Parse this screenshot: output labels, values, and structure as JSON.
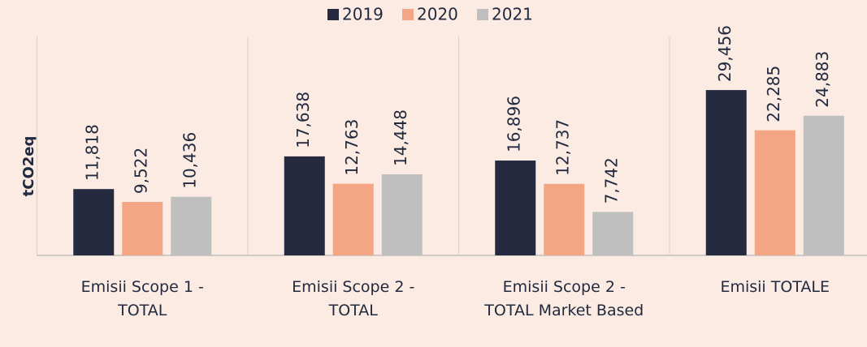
{
  "chart_data": {
    "type": "bar",
    "y_label": "tCO2eq",
    "categories": [
      "Emisii Scope 1 - TOTAL",
      "Emisii Scope 2 - TOTAL",
      "Emisii Scope 2 - TOTAL Market Based",
      "Emisii TOTALE"
    ],
    "series": [
      {
        "name": "2019",
        "color": "#252a40",
        "values": [
          11818,
          17638,
          16896,
          29456
        ],
        "value_labels": [
          "11,818",
          "17,638",
          "16,896",
          "29,456"
        ]
      },
      {
        "name": "2020",
        "color": "#f4a584",
        "values": [
          9522,
          12763,
          12737,
          22285
        ],
        "value_labels": [
          "9,522",
          "12,763",
          "12,737",
          "22,285"
        ]
      },
      {
        "name": "2021",
        "color": "#bfbfbf",
        "values": [
          10436,
          14448,
          7742,
          24883
        ],
        "value_labels": [
          "10,436",
          "14,448",
          "7,742",
          "24,883"
        ]
      }
    ],
    "ylim": [
      0,
      39000
    ],
    "legend": "top"
  }
}
